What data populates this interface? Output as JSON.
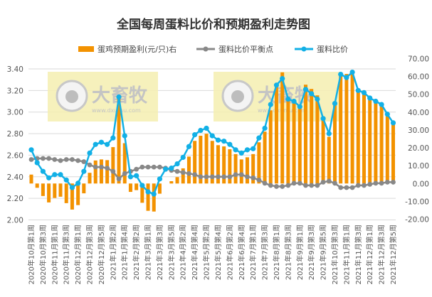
{
  "chart_data": {
    "type": "bar+line",
    "title": "全国每周蛋料比价和预期盈利走势图",
    "legend_position": "top",
    "grid": true,
    "x_tick_labels": [
      "2020年10月第1周",
      "2020年10月第3周",
      "2020年11月第1周",
      "2020年11月第3周",
      "2020年12月第1周",
      "2020年12月第3周",
      "2020年12月第5周",
      "2021年1月第2周",
      "2021年1月第4周",
      "2021年2月第2周",
      "2021年3月第1周",
      "2021年3月第3周",
      "2021年3月第5周",
      "2021年4月第2周",
      "2021年4月第4周",
      "2021年5月第2周",
      "2021年5月第4周",
      "2021年6月第2周",
      "2021年6月第4周",
      "2021年7月第1周",
      "2021年7月第3周",
      "2021年8月第1周",
      "2021年8月第3周",
      "2021年9月第1周",
      "2021年9月第3周",
      "2021年9月第5周",
      "2021年10月第3周",
      "2021年11月第1周",
      "2021年11月第3周",
      "2021年12月第1周",
      "2021年12月第3周",
      "2021年12月第5周"
    ],
    "y_left": {
      "lim": [
        2.0,
        3.4
      ],
      "ticks": [
        "2.00",
        "2.20",
        "2.40",
        "2.60",
        "2.80",
        "3.00",
        "3.20",
        "3.40"
      ]
    },
    "y_right": {
      "lim": [
        -20,
        70
      ],
      "ticks": [
        "-20.00",
        "-10.00",
        "0.00",
        "10.00",
        "20.00",
        "30.00",
        "40.00",
        "50.00",
        "60.00",
        "70.00"
      ]
    },
    "series": [
      {
        "name": "蛋鸡预期盈利(元/只)右",
        "type": "bar",
        "axis": "right",
        "color": "#f39200",
        "values": [
          5,
          -2.4,
          -7,
          -10.6,
          -8.1,
          -7.4,
          -11,
          -14.6,
          -12.1,
          -5.5,
          6,
          12.9,
          13.5,
          13.1,
          20.4,
          48,
          22.6,
          -4.7,
          -3.7,
          -10.8,
          -15.3,
          -15.7,
          -5.7,
          0,
          1.3,
          3.6,
          8.5,
          15.1,
          23.9,
          26.8,
          27.9,
          23.9,
          21.5,
          20.8,
          19.2,
          16.5,
          13.5,
          14.7,
          16.5,
          23.1,
          29.1,
          41,
          54,
          62.3,
          47.4,
          46.1,
          42.7,
          55.4,
          53,
          49.4,
          36.1,
          26.2,
          44.1,
          62.3,
          61.4,
          62.7,
          51.7,
          50.3,
          47.7,
          46.1,
          43.7,
          38.1,
          33.5
        ]
      },
      {
        "name": "蛋料比价平衡点",
        "type": "line",
        "axis": "left",
        "color": "#888888",
        "values": [
          2.56,
          2.57,
          2.57,
          2.57,
          2.56,
          2.55,
          2.56,
          2.56,
          2.55,
          2.54,
          2.51,
          2.49,
          2.49,
          2.48,
          2.45,
          2.38,
          2.43,
          2.45,
          2.47,
          2.49,
          2.49,
          2.49,
          2.49,
          2.48,
          2.46,
          2.45,
          2.44,
          2.43,
          2.42,
          2.4,
          2.4,
          2.4,
          2.4,
          2.4,
          2.4,
          2.42,
          2.42,
          2.4,
          2.39,
          2.37,
          2.34,
          2.32,
          2.31,
          2.31,
          2.32,
          2.34,
          2.34,
          2.32,
          2.32,
          2.32,
          2.35,
          2.36,
          2.34,
          2.3,
          2.3,
          2.3,
          2.32,
          2.32,
          2.33,
          2.34,
          2.34,
          2.35,
          2.35
        ]
      },
      {
        "name": "蛋料比价",
        "type": "line",
        "axis": "left",
        "color": "#12b0e6",
        "values": [
          2.65,
          2.53,
          2.45,
          2.39,
          2.42,
          2.42,
          2.37,
          2.3,
          2.34,
          2.45,
          2.62,
          2.7,
          2.72,
          2.7,
          2.76,
          3.14,
          2.78,
          2.4,
          2.41,
          2.32,
          2.26,
          2.24,
          2.38,
          2.47,
          2.48,
          2.52,
          2.58,
          2.68,
          2.79,
          2.83,
          2.85,
          2.78,
          2.74,
          2.73,
          2.7,
          2.65,
          2.62,
          2.65,
          2.66,
          2.76,
          2.85,
          3.07,
          3.25,
          3.31,
          3.12,
          3.1,
          3.05,
          3.21,
          3.17,
          3.12,
          2.94,
          2.8,
          3.08,
          3.35,
          3.32,
          3.37,
          3.2,
          3.18,
          3.13,
          3.1,
          3.07,
          2.98,
          2.9
        ]
      }
    ]
  },
  "watermark": {
    "brand": "大畜牧",
    "url": "www.dxumu.com",
    "color": "#f5eeb0"
  }
}
